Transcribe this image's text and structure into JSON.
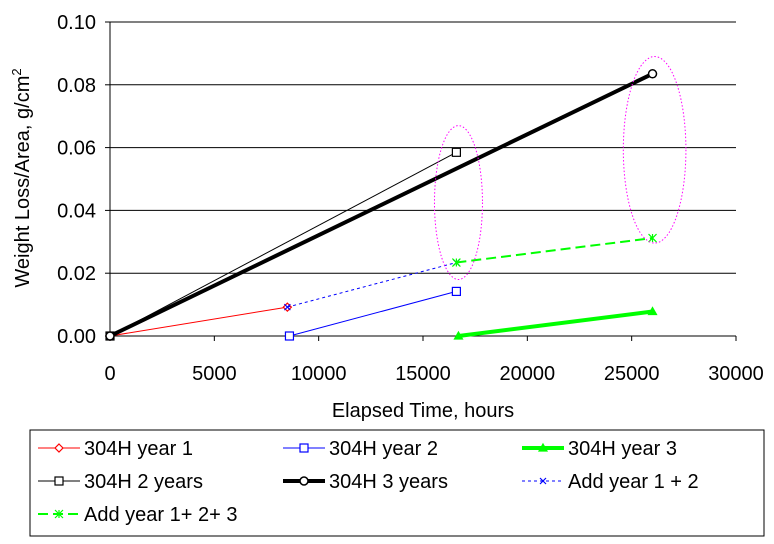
{
  "chart_data": {
    "type": "line",
    "xlabel": "Elapsed Time, hours",
    "ylabel": "Weight Loss/Area, g/cm",
    "ylabel_superscript": "2",
    "xlim": [
      0,
      30000
    ],
    "ylim": [
      0,
      0.1
    ],
    "x_ticks": [
      0,
      5000,
      10000,
      15000,
      20000,
      25000,
      30000
    ],
    "x_tick_labels": [
      "0",
      "5000",
      "10000",
      "15000",
      "20000",
      "25000",
      "30000"
    ],
    "y_ticks": [
      0,
      0.02,
      0.04,
      0.06,
      0.08,
      0.1
    ],
    "y_tick_labels": [
      "0.00",
      "0.02",
      "0.04",
      "0.06",
      "0.08",
      "0.10"
    ],
    "grid": "horizontal major gridlines",
    "legend_position": "bottom",
    "series": [
      {
        "name": "304H year 1",
        "color": "#ff0000",
        "line_style": "solid",
        "line_weight": "thin",
        "marker": "diamond",
        "x": [
          0,
          8500
        ],
        "y": [
          0.0,
          0.0092
        ]
      },
      {
        "name": "304H year 2",
        "color": "#0000ff",
        "line_style": "solid",
        "line_weight": "thin",
        "marker": "square",
        "x": [
          8600,
          16600
        ],
        "y": [
          0.0,
          0.0142
        ]
      },
      {
        "name": "304H year 3",
        "color": "#00ff00",
        "line_style": "solid",
        "line_weight": "thick",
        "marker": "triangle",
        "x": [
          16700,
          26000
        ],
        "y": [
          0.0,
          0.0078
        ]
      },
      {
        "name": "304H 2 years",
        "color": "#000000",
        "line_style": "solid",
        "line_weight": "thin",
        "marker": "square",
        "x": [
          0,
          16600
        ],
        "y": [
          0.0,
          0.0585
        ]
      },
      {
        "name": "304H 3 years",
        "color": "#000000",
        "line_style": "solid",
        "line_weight": "thick",
        "marker": "circle",
        "x": [
          0,
          26000
        ],
        "y": [
          0.0,
          0.0835
        ]
      },
      {
        "name": "Add year 1 + 2",
        "color": "#0000ff",
        "line_style": "dotted",
        "line_weight": "thin",
        "marker": "x",
        "x": [
          8500,
          16600
        ],
        "y": [
          0.0092,
          0.0234
        ]
      },
      {
        "name": "Add year 1+ 2+ 3",
        "color": "#00ff00",
        "line_style": "dashed",
        "line_weight": "medium",
        "marker": "asterisk",
        "x": [
          16600,
          26000
        ],
        "y": [
          0.0234,
          0.0312
        ]
      }
    ],
    "annotations": [
      {
        "shape": "ellipse",
        "color": "#ff00ff",
        "style": "dotted",
        "cx": 16700,
        "cy": 0.0425,
        "rx": 1150,
        "ry": 0.0245
      },
      {
        "shape": "ellipse",
        "color": "#ff00ff",
        "style": "dotted",
        "cx": 26100,
        "cy": 0.0593,
        "rx": 1500,
        "ry": 0.0297
      }
    ]
  }
}
